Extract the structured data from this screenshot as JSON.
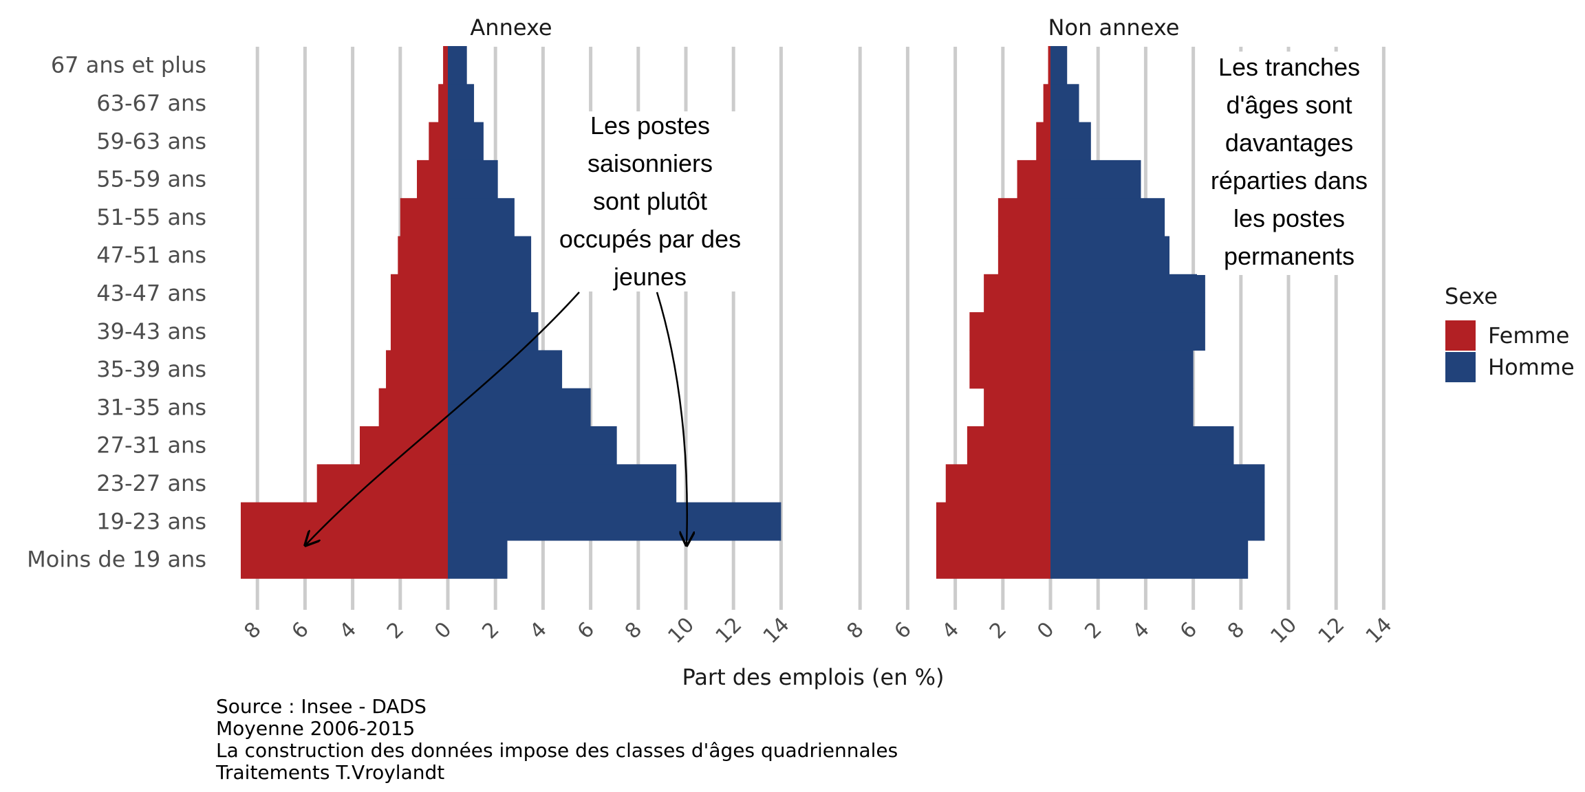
{
  "chart_data": {
    "type": "bar",
    "orientation": "horizontal-pyramid",
    "xlabel": "Part des emplois (en %)",
    "categories": [
      "67 ans et plus",
      "63-67 ans",
      "59-63 ans",
      "55-59 ans",
      "51-55 ans",
      "47-51 ans",
      "43-47 ans",
      "39-43 ans",
      "35-39 ans",
      "31-35 ans",
      "27-31 ans",
      "23-27 ans",
      "19-23 ans",
      "Moins de 19 ans"
    ],
    "x_ticks": [
      "8",
      "6",
      "4",
      "2",
      "0",
      "2",
      "4",
      "6",
      "8",
      "10",
      "12",
      "14"
    ],
    "xlim": [
      -8,
      14
    ],
    "grid": true,
    "legend": {
      "title": "Sexe",
      "position": "right",
      "entries": [
        {
          "label": "Femme",
          "color": "#b22024"
        },
        {
          "label": "Homme",
          "color": "#21427a"
        }
      ]
    },
    "panels": [
      {
        "title": "Annexe",
        "series": [
          {
            "name": "Femme",
            "values": [
              0.2,
              0.4,
              0.8,
              1.3,
              2.0,
              2.1,
              2.4,
              2.4,
              2.6,
              2.9,
              3.7,
              5.5,
              8.7,
              8.7
            ]
          },
          {
            "name": "Homme",
            "values": [
              0.8,
              1.1,
              1.5,
              2.1,
              2.8,
              3.5,
              3.5,
              3.8,
              4.8,
              6.0,
              7.1,
              9.6,
              14.0,
              2.5
            ]
          }
        ],
        "annotation": {
          "text": "Les postes saisonniers sont plutôt occupés par des jeunes"
        }
      },
      {
        "title": "Non annexe",
        "series": [
          {
            "name": "Femme",
            "values": [
              0.1,
              0.3,
              0.6,
              1.4,
              2.2,
              2.2,
              2.8,
              3.4,
              3.4,
              2.8,
              3.5,
              4.4,
              4.8,
              4.8
            ]
          },
          {
            "name": "Homme",
            "values": [
              0.7,
              1.2,
              1.7,
              3.8,
              4.8,
              5.0,
              6.5,
              6.5,
              6.0,
              6.0,
              7.7,
              9.0,
              9.0,
              8.3
            ]
          }
        ],
        "annotation": {
          "text": "Les tranches d'âges sont davantages réparties dans les postes permanents"
        }
      }
    ]
  },
  "caption": {
    "lines": [
      "Source : Insee - DADS",
      "Moyenne 2006-2015",
      "La construction des données impose des classes d'âges quadriennales",
      "Traitements T.Vroylandt"
    ]
  }
}
